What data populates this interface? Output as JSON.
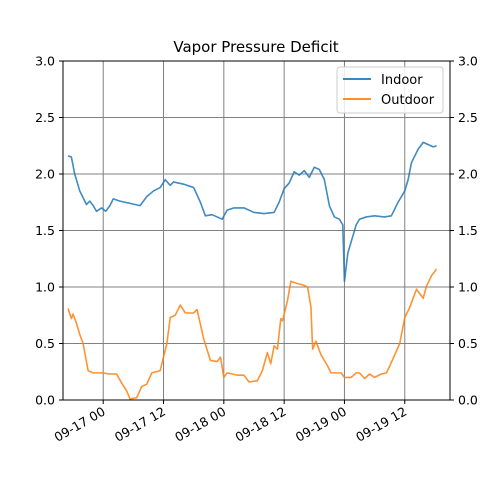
{
  "chart_data": {
    "type": "line",
    "title": "Vapor Pressure Deficit",
    "xlabel": "",
    "ylabel": "",
    "ylim": [
      0,
      3.0
    ],
    "xlim": [
      "2023-09-16 16:00",
      "2023-09-19 21:00"
    ],
    "x_ticks": [
      {
        "t": "2023-09-17 00:00",
        "label": "09-17 00"
      },
      {
        "t": "2023-09-17 12:00",
        "label": "09-17 12"
      },
      {
        "t": "2023-09-18 00:00",
        "label": "09-18 00"
      },
      {
        "t": "2023-09-18 12:00",
        "label": "09-18 12"
      },
      {
        "t": "2023-09-19 00:00",
        "label": "09-19 00"
      },
      {
        "t": "2023-09-19 12:00",
        "label": "09-19 12"
      }
    ],
    "y_ticks": [
      "0.0",
      "0.5",
      "1.0",
      "1.5",
      "2.0",
      "2.5",
      "3.0"
    ],
    "grid": true,
    "legend": "top-right",
    "colors": {
      "indoor": "#1f77b4",
      "outdoor": "#ff7f0e",
      "grid": "#808080"
    },
    "series": [
      {
        "name": "Indoor",
        "color": "#1f77b4",
        "points": [
          [
            "2023-09-16 17:00",
            2.16
          ],
          [
            "2023-09-16 17:40",
            2.15
          ],
          [
            "2023-09-16 18:20",
            2.0
          ],
          [
            "2023-09-16 19:20",
            1.85
          ],
          [
            "2023-09-16 20:40",
            1.73
          ],
          [
            "2023-09-16 21:20",
            1.76
          ],
          [
            "2023-09-16 22:00",
            1.72
          ],
          [
            "2023-09-16 22:40",
            1.67
          ],
          [
            "2023-09-16 23:40",
            1.7
          ],
          [
            "2023-09-17 00:30",
            1.67
          ],
          [
            "2023-09-17 01:20",
            1.72
          ],
          [
            "2023-09-17 02:00",
            1.78
          ],
          [
            "2023-09-17 03:20",
            1.76
          ],
          [
            "2023-09-17 05:20",
            1.74
          ],
          [
            "2023-09-17 07:20",
            1.72
          ],
          [
            "2023-09-17 08:40",
            1.8
          ],
          [
            "2023-09-17 10:00",
            1.85
          ],
          [
            "2023-09-17 11:20",
            1.88
          ],
          [
            "2023-09-17 12:20",
            1.95
          ],
          [
            "2023-09-17 13:20",
            1.9
          ],
          [
            "2023-09-17 14:00",
            1.93
          ],
          [
            "2023-09-17 16:00",
            1.91
          ],
          [
            "2023-09-17 18:00",
            1.88
          ],
          [
            "2023-09-17 19:20",
            1.75
          ],
          [
            "2023-09-17 20:20",
            1.63
          ],
          [
            "2023-09-17 21:40",
            1.64
          ],
          [
            "2023-09-17 22:40",
            1.62
          ],
          [
            "2023-09-17 23:40",
            1.6
          ],
          [
            "2023-09-18 00:40",
            1.68
          ],
          [
            "2023-09-18 02:00",
            1.7
          ],
          [
            "2023-09-18 04:00",
            1.7
          ],
          [
            "2023-09-18 06:00",
            1.66
          ],
          [
            "2023-09-18 08:00",
            1.65
          ],
          [
            "2023-09-18 10:00",
            1.66
          ],
          [
            "2023-09-18 11:00",
            1.75
          ],
          [
            "2023-09-18 12:00",
            1.87
          ],
          [
            "2023-09-18 13:00",
            1.92
          ],
          [
            "2023-09-18 14:00",
            2.02
          ],
          [
            "2023-09-18 15:00",
            1.99
          ],
          [
            "2023-09-18 16:00",
            2.03
          ],
          [
            "2023-09-18 17:00",
            1.97
          ],
          [
            "2023-09-18 18:00",
            2.06
          ],
          [
            "2023-09-18 19:00",
            2.04
          ],
          [
            "2023-09-18 20:00",
            1.95
          ],
          [
            "2023-09-18 21:00",
            1.72
          ],
          [
            "2023-09-18 22:00",
            1.62
          ],
          [
            "2023-09-18 23:00",
            1.6
          ],
          [
            "2023-09-18 23:40",
            1.55
          ],
          [
            "2023-09-19 00:00",
            1.05
          ],
          [
            "2023-09-19 00:40",
            1.3
          ],
          [
            "2023-09-19 01:20",
            1.4
          ],
          [
            "2023-09-19 02:20",
            1.55
          ],
          [
            "2023-09-19 03:00",
            1.6
          ],
          [
            "2023-09-19 04:20",
            1.62
          ],
          [
            "2023-09-19 06:00",
            1.63
          ],
          [
            "2023-09-19 08:00",
            1.62
          ],
          [
            "2023-09-19 09:20",
            1.63
          ],
          [
            "2023-09-19 10:40",
            1.75
          ],
          [
            "2023-09-19 12:00",
            1.85
          ],
          [
            "2023-09-19 12:40",
            1.95
          ],
          [
            "2023-09-19 13:20",
            2.1
          ],
          [
            "2023-09-19 14:40",
            2.22
          ],
          [
            "2023-09-19 15:40",
            2.28
          ],
          [
            "2023-09-19 16:40",
            2.26
          ],
          [
            "2023-09-19 17:40",
            2.24
          ],
          [
            "2023-09-19 18:20",
            2.25
          ]
        ]
      },
      {
        "name": "Outdoor",
        "color": "#ff7f0e",
        "points": [
          [
            "2023-09-16 17:00",
            0.81
          ],
          [
            "2023-09-16 17:40",
            0.72
          ],
          [
            "2023-09-16 18:00",
            0.76
          ],
          [
            "2023-09-16 18:40",
            0.68
          ],
          [
            "2023-09-16 19:20",
            0.58
          ],
          [
            "2023-09-16 20:00",
            0.5
          ],
          [
            "2023-09-16 21:00",
            0.26
          ],
          [
            "2023-09-16 22:00",
            0.24
          ],
          [
            "2023-09-17 00:00",
            0.24
          ],
          [
            "2023-09-17 01:00",
            0.23
          ],
          [
            "2023-09-17 02:40",
            0.23
          ],
          [
            "2023-09-17 03:40",
            0.15
          ],
          [
            "2023-09-17 04:40",
            0.08
          ],
          [
            "2023-09-17 05:20",
            0.01
          ],
          [
            "2023-09-17 06:40",
            0.02
          ],
          [
            "2023-09-17 07:40",
            0.12
          ],
          [
            "2023-09-17 08:40",
            0.14
          ],
          [
            "2023-09-17 09:40",
            0.24
          ],
          [
            "2023-09-17 11:20",
            0.26
          ],
          [
            "2023-09-17 12:40",
            0.5
          ],
          [
            "2023-09-17 13:20",
            0.73
          ],
          [
            "2023-09-17 14:20",
            0.75
          ],
          [
            "2023-09-17 15:20",
            0.84
          ],
          [
            "2023-09-17 16:20",
            0.77
          ],
          [
            "2023-09-17 18:00",
            0.77
          ],
          [
            "2023-09-17 18:40",
            0.8
          ],
          [
            "2023-09-17 20:00",
            0.54
          ],
          [
            "2023-09-17 21:20",
            0.35
          ],
          [
            "2023-09-17 22:40",
            0.34
          ],
          [
            "2023-09-17 23:20",
            0.38
          ],
          [
            "2023-09-18 00:00",
            0.2
          ],
          [
            "2023-09-18 00:40",
            0.24
          ],
          [
            "2023-09-18 02:40",
            0.22
          ],
          [
            "2023-09-18 04:00",
            0.22
          ],
          [
            "2023-09-18 05:00",
            0.16
          ],
          [
            "2023-09-18 06:40",
            0.17
          ],
          [
            "2023-09-18 07:40",
            0.26
          ],
          [
            "2023-09-18 08:40",
            0.42
          ],
          [
            "2023-09-18 09:20",
            0.32
          ],
          [
            "2023-09-18 10:00",
            0.48
          ],
          [
            "2023-09-18 10:40",
            0.45
          ],
          [
            "2023-09-18 11:20",
            0.72
          ],
          [
            "2023-09-18 11:40",
            0.7
          ],
          [
            "2023-09-18 12:40",
            0.88
          ],
          [
            "2023-09-18 13:20",
            1.05
          ],
          [
            "2023-09-18 14:40",
            1.03
          ],
          [
            "2023-09-18 15:40",
            1.02
          ],
          [
            "2023-09-18 16:40",
            1.0
          ],
          [
            "2023-09-18 17:20",
            0.82
          ],
          [
            "2023-09-18 17:40",
            0.45
          ],
          [
            "2023-09-18 18:20",
            0.52
          ],
          [
            "2023-09-18 19:20",
            0.4
          ],
          [
            "2023-09-18 20:40",
            0.3
          ],
          [
            "2023-09-18 21:20",
            0.24
          ],
          [
            "2023-09-18 23:20",
            0.24
          ],
          [
            "2023-09-19 00:00",
            0.2
          ],
          [
            "2023-09-19 01:20",
            0.2
          ],
          [
            "2023-09-19 02:20",
            0.24
          ],
          [
            "2023-09-19 03:00",
            0.24
          ],
          [
            "2023-09-19 04:00",
            0.19
          ],
          [
            "2023-09-19 05:00",
            0.23
          ],
          [
            "2023-09-19 06:00",
            0.2
          ],
          [
            "2023-09-19 07:20",
            0.23
          ],
          [
            "2023-09-19 08:20",
            0.24
          ],
          [
            "2023-09-19 09:00",
            0.3
          ],
          [
            "2023-09-19 10:00",
            0.4
          ],
          [
            "2023-09-19 11:00",
            0.5
          ],
          [
            "2023-09-19 12:00",
            0.73
          ],
          [
            "2023-09-19 13:00",
            0.82
          ],
          [
            "2023-09-19 14:20",
            0.98
          ],
          [
            "2023-09-19 15:00",
            0.94
          ],
          [
            "2023-09-19 15:40",
            0.9
          ],
          [
            "2023-09-19 16:20",
            1.01
          ],
          [
            "2023-09-19 17:20",
            1.1
          ],
          [
            "2023-09-19 18:20",
            1.16
          ]
        ]
      }
    ]
  }
}
